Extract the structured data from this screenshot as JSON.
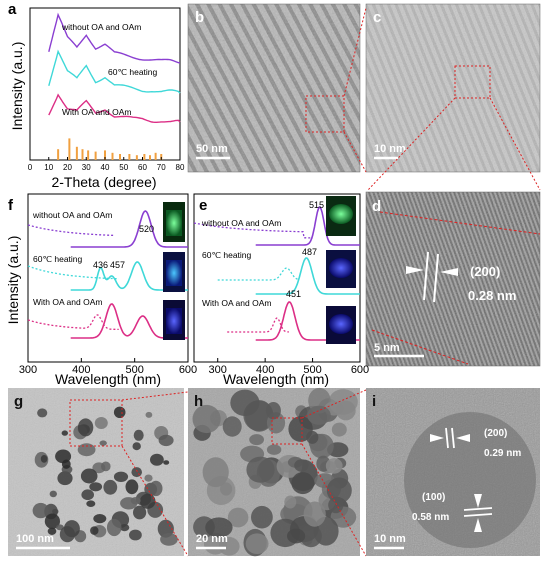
{
  "panels": {
    "a": "a",
    "b": "b",
    "c": "c",
    "d": "d",
    "e": "e",
    "f": "f",
    "g": "g",
    "h": "h",
    "i": "i"
  },
  "panel_a": {
    "legend": [
      "without OA and OAm",
      "60℃ heating",
      "With OA and OAm"
    ],
    "colors": [
      "#8a3fd1",
      "#3fd8d8",
      "#dc2f86"
    ],
    "ref_color": "#f0a040"
  },
  "scalebars": {
    "b": "50 nm",
    "c": "10 nm",
    "d": "5 nm",
    "g": "100 nm",
    "h": "20 nm",
    "i": "10 nm"
  },
  "panel_d": {
    "plane": "(200)",
    "spacing": "0.28 nm"
  },
  "panel_f": {
    "labels": [
      "without OA and OAm",
      "60℃  heating",
      "With OA and OAm"
    ],
    "peaks": [
      "520",
      "436",
      "457"
    ]
  },
  "panel_e": {
    "labels": [
      "without OA and OAm",
      "60℃  heating",
      "With OA and OAm"
    ],
    "peaks": [
      "515",
      "487",
      "451"
    ]
  },
  "panel_i": {
    "plane1": "(200)",
    "spacing1": "0.29 nm",
    "plane2": "(100)",
    "spacing2": "0.58 nm"
  },
  "chart_data": [
    {
      "type": "line",
      "panel": "a",
      "xlabel": "2-Theta (degree)",
      "ylabel": "Intensity (a.u.)",
      "xlim": [
        0,
        80
      ],
      "xticks": [
        "0",
        "10",
        "20",
        "30",
        "40",
        "50",
        "60",
        "70",
        "80"
      ],
      "series": [
        {
          "name": "without OA and OAm",
          "x": [
            10,
            15,
            20,
            25,
            30,
            35,
            40,
            45,
            50,
            55,
            60,
            65,
            70,
            75,
            80
          ],
          "y": [
            0.72,
            0.95,
            0.8,
            0.74,
            0.83,
            0.74,
            0.76,
            0.7,
            0.69,
            0.68,
            0.67,
            0.66,
            0.65,
            0.65,
            0.64
          ]
        },
        {
          "name": "60℃ heating",
          "x": [
            10,
            15,
            20,
            25,
            30,
            35,
            40,
            45,
            50,
            55,
            60,
            65,
            70,
            75,
            80
          ],
          "y": [
            0.5,
            0.72,
            0.58,
            0.53,
            0.62,
            0.52,
            0.55,
            0.49,
            0.48,
            0.47,
            0.46,
            0.46,
            0.45,
            0.45,
            0.44
          ]
        },
        {
          "name": "With OA and OAm",
          "x": [
            10,
            15,
            20,
            25,
            30,
            35,
            40,
            45,
            50,
            55,
            60,
            65,
            70,
            75,
            80
          ],
          "y": [
            0.3,
            0.44,
            0.34,
            0.32,
            0.38,
            0.31,
            0.34,
            0.29,
            0.28,
            0.27,
            0.27,
            0.26,
            0.26,
            0.25,
            0.25
          ]
        }
      ],
      "reference_bars": {
        "x": [
          15,
          21,
          25,
          28,
          31,
          35,
          40,
          44,
          48,
          53,
          57,
          61,
          64,
          67,
          70
        ],
        "h": [
          0.45,
          0.9,
          0.55,
          0.45,
          0.4,
          0.35,
          0.4,
          0.3,
          0.25,
          0.25,
          0.2,
          0.25,
          0.2,
          0.3,
          0.25
        ]
      }
    },
    {
      "type": "line",
      "panel": "f",
      "xlabel": "Wavelength (nm)",
      "ylabel": "Intensity (a.u.)",
      "xlim": [
        300,
        600
      ],
      "xticks": [
        "300",
        "400",
        "500",
        "600"
      ],
      "peak_labels": [
        "520",
        "436",
        "457"
      ]
    },
    {
      "type": "line",
      "panel": "e",
      "xlabel": "Wavelength (nm)",
      "xlim": [
        250,
        600
      ],
      "xticks": [
        "300",
        "400",
        "500",
        "600"
      ],
      "peak_labels": [
        "515",
        "487",
        "451"
      ]
    }
  ]
}
